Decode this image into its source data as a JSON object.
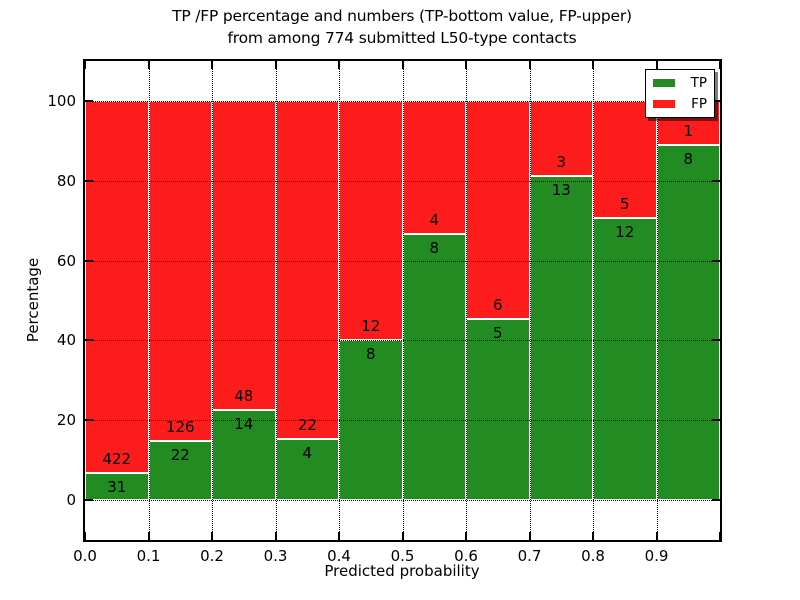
{
  "chart_data": {
    "type": "bar",
    "stacked": true,
    "title_lines": [
      "TP /FP percentage and numbers (TP-bottom value, FP-upper)",
      "from among 774 submitted L50-type contacts"
    ],
    "xlabel": "Predicted probability",
    "ylabel": "Percentage",
    "total_contacts": 774,
    "bins": {
      "start": [
        0.0,
        0.1,
        0.2,
        0.3,
        0.4,
        0.5,
        0.6,
        0.7,
        0.8,
        0.9
      ],
      "width": 0.1
    },
    "series": [
      {
        "name": "TP",
        "color": "#228b22",
        "counts": [
          31,
          22,
          14,
          4,
          8,
          8,
          5,
          13,
          12,
          8
        ]
      },
      {
        "name": "FP",
        "color": "#fc1c1c",
        "counts": [
          422,
          126,
          48,
          22,
          12,
          4,
          6,
          3,
          5,
          1
        ]
      }
    ],
    "tp_percent": [
      6.84,
      14.86,
      22.58,
      15.38,
      40.0,
      66.67,
      45.45,
      81.25,
      70.59,
      88.89
    ],
    "fp_percent": [
      93.16,
      85.14,
      77.42,
      84.62,
      60.0,
      33.33,
      54.55,
      18.75,
      29.41,
      11.11
    ],
    "xlim": [
      0.0,
      1.0
    ],
    "ylim": [
      -10,
      110
    ],
    "xticks": [
      "0.0",
      "0.1",
      "0.2",
      "0.3",
      "0.4",
      "0.5",
      "0.6",
      "0.7",
      "0.8",
      "0.9"
    ],
    "yticks": [
      "0",
      "20",
      "40",
      "60",
      "80",
      "100"
    ],
    "ytick_values": [
      0,
      20,
      40,
      60,
      80,
      100
    ],
    "grid": "dotted",
    "legend_position": "upper right"
  }
}
